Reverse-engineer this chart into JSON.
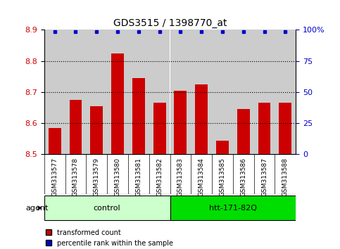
{
  "title": "GDS3515 / 1398770_at",
  "samples": [
    "GSM313577",
    "GSM313578",
    "GSM313579",
    "GSM313580",
    "GSM313581",
    "GSM313582",
    "GSM313583",
    "GSM313584",
    "GSM313585",
    "GSM313586",
    "GSM313587",
    "GSM313588"
  ],
  "bar_values": [
    8.585,
    8.675,
    8.655,
    8.825,
    8.745,
    8.665,
    8.705,
    8.725,
    8.545,
    8.645,
    8.665,
    8.665
  ],
  "percentile_values": [
    100,
    100,
    100,
    100,
    100,
    100,
    100,
    100,
    100,
    100,
    100,
    100
  ],
  "bar_color": "#cc0000",
  "percentile_color": "#0000cc",
  "ylim_left": [
    8.5,
    8.9
  ],
  "ylim_right": [
    0,
    100
  ],
  "yticks_left": [
    8.5,
    8.6,
    8.7,
    8.8,
    8.9
  ],
  "yticks_right": [
    0,
    25,
    50,
    75,
    100
  ],
  "ylabel_left_color": "#cc0000",
  "ylabel_right_color": "#0000cc",
  "groups": [
    {
      "label": "control",
      "start": 0,
      "end": 6,
      "color": "#ccffcc"
    },
    {
      "label": "htt-171-82Q",
      "start": 6,
      "end": 12,
      "color": "#00dd00"
    }
  ],
  "agent_label": "agent",
  "bar_width": 0.6,
  "background_color": "#ffffff",
  "sample_area_color": "#cccccc",
  "legend_items": [
    {
      "label": "transformed count",
      "color": "#cc0000",
      "marker": "s"
    },
    {
      "label": "percentile rank within the sample",
      "color": "#0000cc",
      "marker": "s"
    }
  ]
}
